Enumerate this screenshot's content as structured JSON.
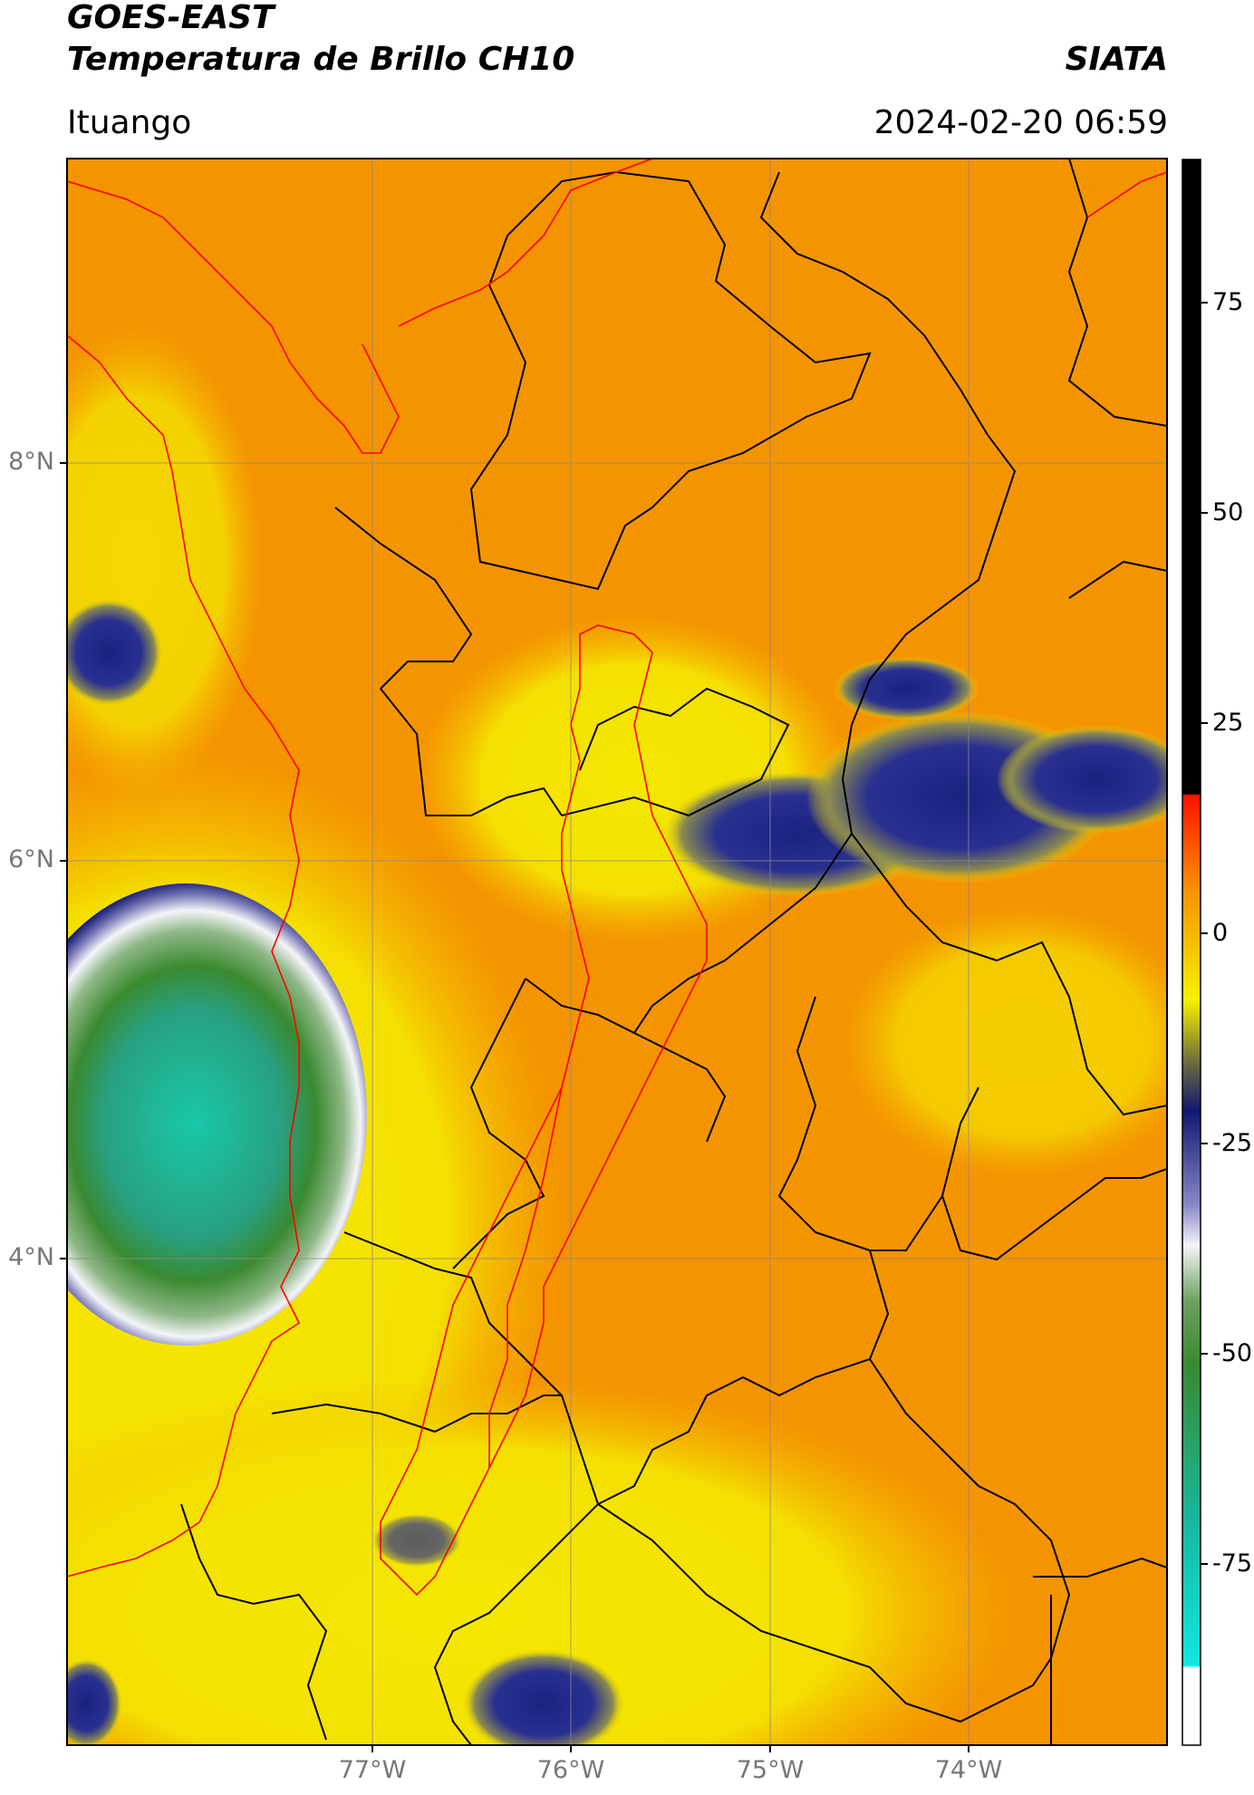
{
  "header": {
    "satellite": "GOES-EAST",
    "product": "Temperatura de Brillo CH10",
    "agency": "SIATA",
    "location": "Ituango",
    "datetime": "2024-02-20 06:59"
  },
  "axes": {
    "lat_labels": [
      "8°N",
      "6°N",
      "4°N"
    ],
    "lon_labels": [
      "77°W",
      "76°W",
      "75°W",
      "74°W"
    ]
  },
  "colorbar": {
    "ticks": [
      "75",
      "50",
      "25",
      "0",
      "-25",
      "-50",
      "-75"
    ],
    "colors": {
      "cyan": "#10d8c8",
      "green": "#3a8a30",
      "white": "#f4f4f8",
      "navy": "#101870",
      "yellow": "#f8f000",
      "orange": "#f89000",
      "red": "#ff1000",
      "black": "#000000"
    }
  },
  "map_colors": {
    "base_orange": "#f49400",
    "yellow": "#f4e800",
    "navy": "#1a2280",
    "department_border": "#000000",
    "region_border": "#ff0000",
    "grid": "#8a8a8a"
  }
}
